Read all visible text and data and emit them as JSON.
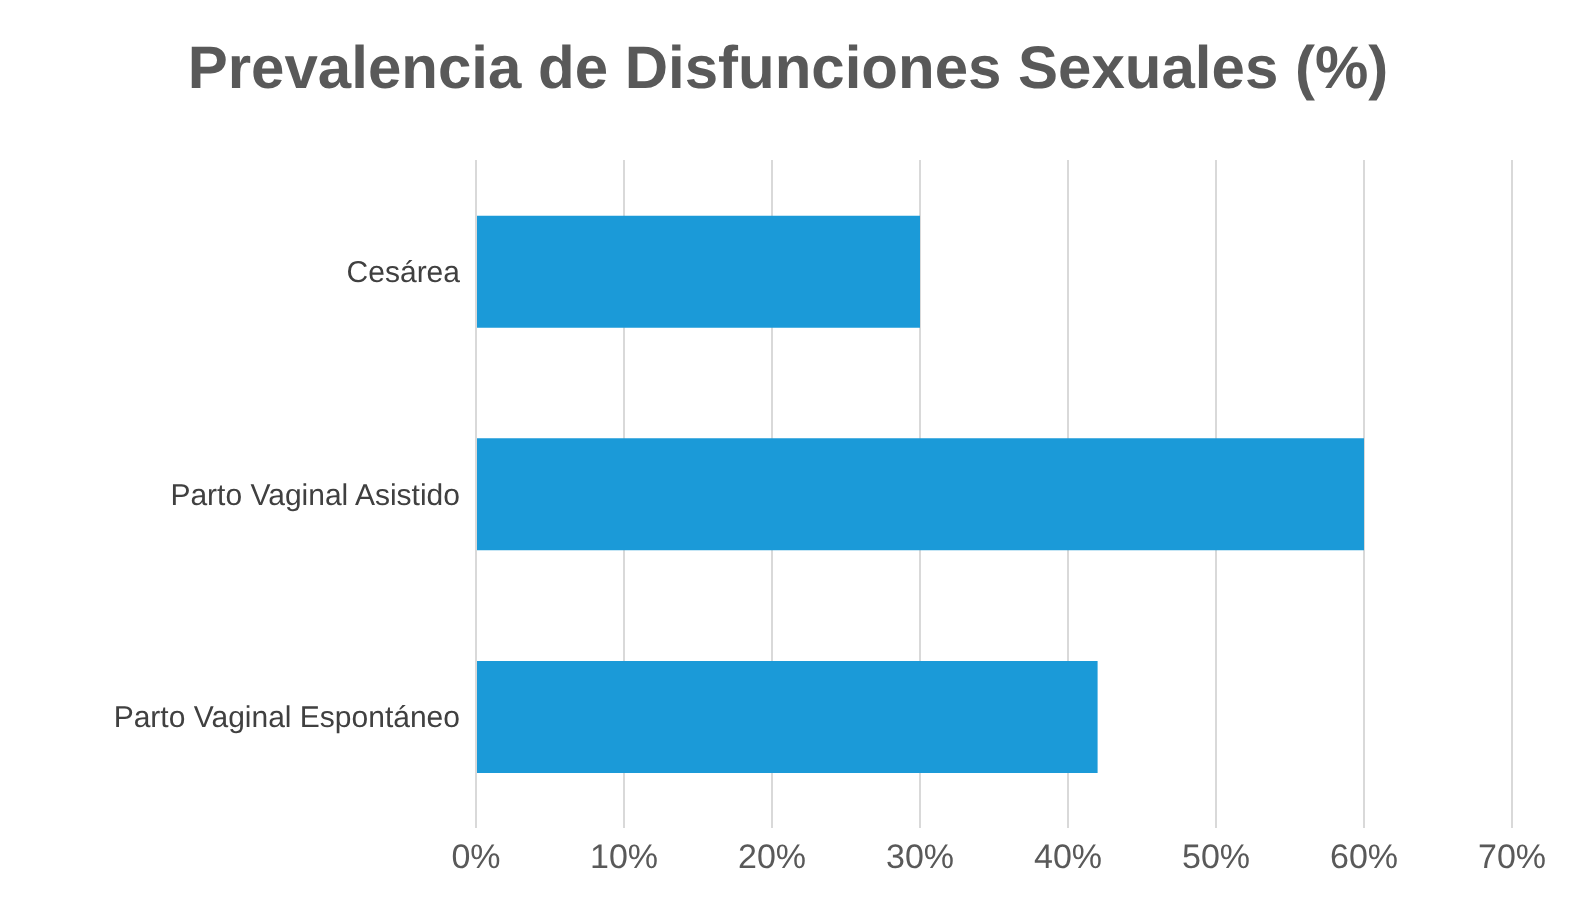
{
  "chart_data": {
    "type": "bar",
    "orientation": "horizontal",
    "title": "Prevalencia de Disfunciones Sexuales (%)",
    "categories": [
      "Cesárea",
      "Parto Vaginal Asistido",
      "Parto Vaginal Espontáneo"
    ],
    "values": [
      30,
      60,
      42
    ],
    "color": "#1b9ad8",
    "xlim": [
      0,
      70
    ],
    "xticks": [
      {
        "value": 0,
        "label": "0%"
      },
      {
        "value": 10,
        "label": "10%"
      },
      {
        "value": 20,
        "label": "20%"
      },
      {
        "value": 30,
        "label": "30%"
      },
      {
        "value": 40,
        "label": "40%"
      },
      {
        "value": 50,
        "label": "50%"
      },
      {
        "value": 60,
        "label": "60%"
      },
      {
        "value": 70,
        "label": "70%"
      }
    ],
    "grid": "x",
    "legend": false
  }
}
